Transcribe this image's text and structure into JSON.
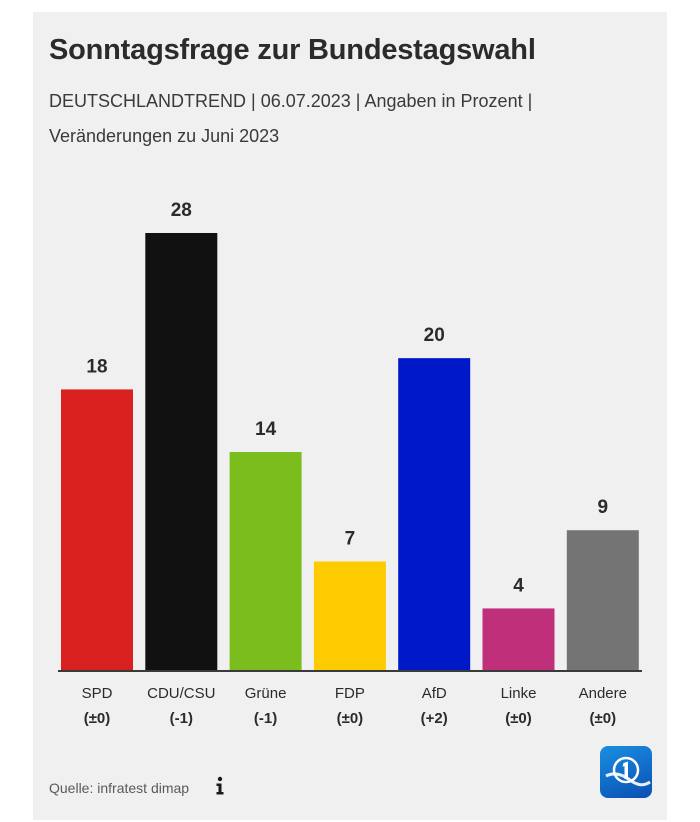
{
  "header": {
    "title": "Sonntagsfrage zur Bundestagswahl",
    "subtitle": "DEUTSCHLANDTREND | 06.07.2023 | Angaben in Prozent | Veränderungen zu Juni 2023"
  },
  "footer": {
    "source": "Quelle: infratest dimap",
    "info_icon": "info-icon",
    "logo_icon": "tagesschau-logo-icon"
  },
  "chart_data": {
    "type": "bar",
    "categories": [
      "SPD",
      "CDU/CSU",
      "Grüne",
      "FDP",
      "AfD",
      "Linke",
      "Andere"
    ],
    "values": [
      18,
      28,
      14,
      7,
      20,
      4,
      9
    ],
    "changes": [
      "(±0)",
      "(-1)",
      "(-1)",
      "(±0)",
      "(+2)",
      "(±0)",
      "(±0)"
    ],
    "colors": [
      "#d8201f",
      "#111111",
      "#7cbd1e",
      "#fecb00",
      "#0019c8",
      "#c0307a",
      "#747474"
    ],
    "ylim": [
      0,
      28
    ],
    "grid": false,
    "legend": "none"
  }
}
